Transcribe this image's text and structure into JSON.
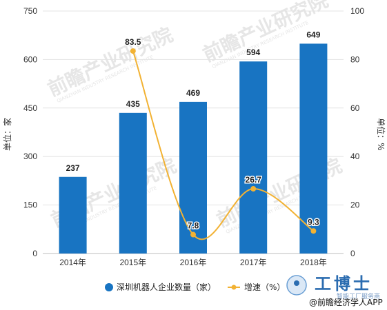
{
  "chart_data": {
    "type": "bar",
    "title": "",
    "categories": [
      "2014年",
      "2015年",
      "2016年",
      "2017年",
      "2018年"
    ],
    "series": [
      {
        "name": "深圳机器人企业数量（家）",
        "type": "bar",
        "axis": "left",
        "values": [
          237,
          435,
          469,
          594,
          649
        ],
        "color": "#1874c2"
      },
      {
        "name": "增速（%）",
        "type": "line",
        "axis": "right",
        "smooth": true,
        "values": [
          null,
          83.5,
          7.8,
          26.7,
          9.3
        ],
        "color": "#f2b233"
      }
    ],
    "left_axis": {
      "label": "单位：家",
      "range": [
        0,
        750
      ],
      "ticks": [
        "0",
        "150",
        "300",
        "450",
        "600",
        "750"
      ]
    },
    "right_axis": {
      "label": "单位：%",
      "range": [
        0,
        100
      ],
      "ticks": [
        "0",
        "20",
        "40",
        "60",
        "80",
        "100"
      ]
    },
    "bar_labels": [
      "237",
      "435",
      "469",
      "594",
      "649"
    ],
    "rate_labels": [
      "83.5",
      "7.8",
      "26.7",
      "9.3"
    ],
    "grid": true,
    "legend_position": "bottom"
  },
  "watermark": {
    "text": "前瞻产业研究院",
    "sub": "QIANZHAN INDUSTRY RESEARCH INSTITUTE"
  },
  "branding": {
    "logo_text": "工博士",
    "logo_sub": "智能工厂服务商",
    "credit": "@前瞻经济学人APP"
  }
}
